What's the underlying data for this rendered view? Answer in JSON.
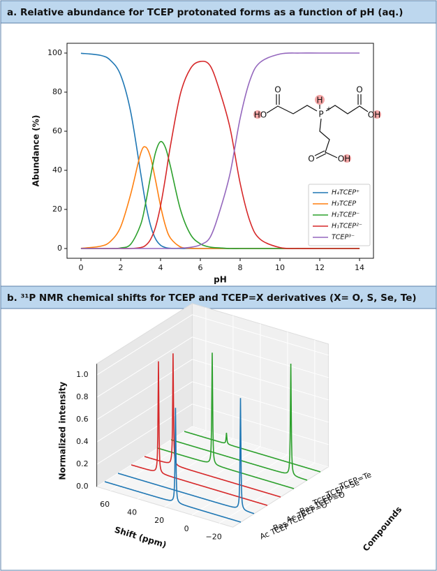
{
  "chart_data": [
    {
      "type": "line",
      "title": "a. Relative abundance for TCEP protonated forms as a function of pH (aq.)",
      "xlabel": "pH",
      "ylabel": "Abundance (%)",
      "x": [
        0,
        1,
        1.5,
        2,
        2.5,
        3,
        3.25,
        3.5,
        3.75,
        4,
        4.25,
        4.5,
        5,
        5.5,
        6,
        6.5,
        7,
        7.5,
        8,
        8.5,
        9,
        10,
        11,
        12,
        14
      ],
      "series": [
        {
          "name": "H₄TCEP⁺",
          "color": "#1f77b4",
          "values": [
            99.9,
            98.8,
            96.1,
            88.6,
            69.9,
            38.6,
            23.2,
            11.7,
            4.9,
            1.7,
            0.5,
            0.1,
            0,
            0,
            0,
            0,
            0,
            0,
            0,
            0,
            0,
            0,
            0,
            0,
            0
          ]
        },
        {
          "name": "H₃TCEP",
          "color": "#ff7f0e",
          "values": [
            0.1,
            1.2,
            3.8,
            11.2,
            27.8,
            48.6,
            51.9,
            46.6,
            34.8,
            21.8,
            11.5,
            5.3,
            0.8,
            0.1,
            0,
            0,
            0,
            0,
            0,
            0,
            0,
            0,
            0,
            0,
            0
          ]
        },
        {
          "name": "H₂TCEP⁻",
          "color": "#2ca02c",
          "values": [
            0,
            0,
            0,
            0.3,
            2.2,
            12.2,
            23.2,
            37.0,
            49.2,
            54.7,
            51.5,
            41.9,
            19.9,
            7.3,
            2.4,
            0.7,
            0.3,
            0,
            0,
            0,
            0,
            0,
            0,
            0,
            0
          ]
        },
        {
          "name": "H₁TCEP²⁻",
          "color": "#d62728",
          "values": [
            0,
            0,
            0,
            0,
            0,
            0.5,
            1.6,
            4.7,
            11.0,
            21.8,
            36.5,
            52.7,
            79.2,
            92.0,
            95.7,
            93.4,
            79.7,
            61.3,
            33.4,
            13.7,
            4.8,
            0.5,
            0,
            0,
            0
          ]
        },
        {
          "name": "TCEP³⁻",
          "color": "#9467bd",
          "values": [
            0,
            0,
            0,
            0,
            0,
            0,
            0,
            0,
            0,
            0,
            0,
            0,
            0.2,
            0.6,
            1.9,
            5.9,
            20.0,
            38.7,
            66.6,
            86.3,
            95.2,
            99.5,
            100,
            100,
            100
          ]
        }
      ],
      "xlim": [
        -0.7,
        14.7
      ],
      "ylim": [
        -5,
        105
      ],
      "xticks": [
        0,
        2,
        4,
        6,
        8,
        10,
        12,
        14
      ],
      "yticks": [
        0,
        20,
        40,
        60,
        80,
        100
      ],
      "legend": "lower right",
      "structure": {
        "labels": [
          "O",
          "HO",
          "H",
          "P",
          "+",
          "O",
          "OH",
          "O",
          "OH"
        ]
      }
    },
    {
      "type": "waterfall3d",
      "title": "b. ³¹P NMR chemical shifts for TCEP and TCEP=X derivatives (X= O, S, Se, Te)",
      "xlabel": "Shift (ppm)",
      "ylabel": "Compounds",
      "zlabel": "Normalized intensity",
      "xlim": [
        70,
        -30
      ],
      "xticks": [
        60,
        40,
        20,
        0,
        {
          "value": -20,
          "label": "−20"
        }
      ],
      "zlim": [
        0,
        1
      ],
      "zticks": [
        {
          "value": 0,
          "label": "0.0"
        },
        {
          "value": 0.2,
          "label": "0.2"
        },
        {
          "value": 0.4,
          "label": "0.4"
        },
        {
          "value": 0.6,
          "label": "0.6"
        },
        {
          "value": 0.8,
          "label": "0.8"
        },
        {
          "value": 1,
          "label": "1.0"
        }
      ],
      "series": [
        {
          "name": "Ac TCEP",
          "color": "#1f77b4",
          "peak_shift": 18,
          "peak_intensity": 0.85
        },
        {
          "name": "Bas TCEP",
          "color": "#1f77b4",
          "peak_shift": -20,
          "peak_intensity": 1.0
        },
        {
          "name": "Ac TCEP=O",
          "color": "#d62728",
          "peak_shift": 50,
          "peak_intensity": 1.0
        },
        {
          "name": "Bas TCEP=O",
          "color": "#d62728",
          "peak_shift": 49,
          "peak_intensity": 1.0
        },
        {
          "name": "TCEP=S",
          "color": "#2ca02c",
          "peak_shift": 30,
          "peak_intensity": 1.0
        },
        {
          "name": "TCEP=Se",
          "color": "#2ca02c",
          "peak_shift": -18,
          "peak_intensity": 1.0
        },
        {
          "name": "TCEP=Te",
          "color": "#2ca02c",
          "peak_shift": 39,
          "peak_intensity": 0.1
        }
      ]
    }
  ]
}
